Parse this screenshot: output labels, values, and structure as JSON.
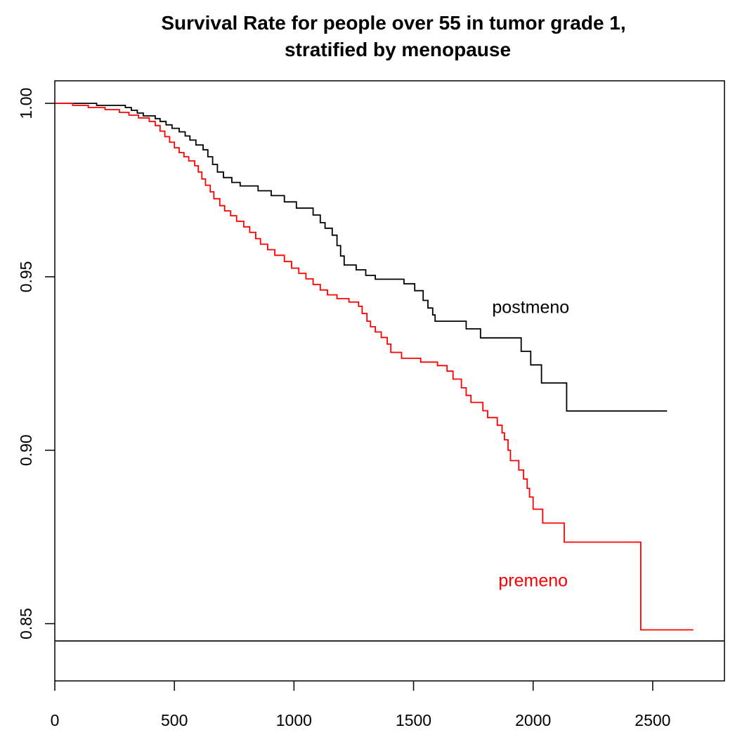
{
  "chart_data": {
    "type": "line",
    "title_lines": [
      "Survival Rate for people over 55 in tumor grade 1,",
      "stratified by menopause"
    ],
    "xlabel": "",
    "ylabel": "",
    "xlim": [
      0,
      2800
    ],
    "ylim": [
      0.8335,
      1.0065
    ],
    "x_ticks": [
      0,
      500,
      1000,
      1500,
      2000,
      2500
    ],
    "x_tick_labels": [
      "0",
      "500",
      "1000",
      "1500",
      "2000",
      "2500"
    ],
    "y_ticks": [
      0.85,
      0.9,
      0.95,
      1.0
    ],
    "y_tick_labels": [
      "0.85",
      "0.90",
      "0.95",
      "1.00"
    ],
    "reference_line": {
      "y": 0.845
    },
    "grid": false,
    "legend": "none",
    "series": [
      {
        "name": "postmeno",
        "color": "#000000",
        "step": true,
        "points": [
          [
            0,
            1.0
          ],
          [
            175,
            0.9994
          ],
          [
            295,
            0.9988
          ],
          [
            320,
            0.998
          ],
          [
            345,
            0.9972
          ],
          [
            370,
            0.9964
          ],
          [
            420,
            0.9956
          ],
          [
            440,
            0.9948
          ],
          [
            465,
            0.9938
          ],
          [
            490,
            0.9928
          ],
          [
            520,
            0.9918
          ],
          [
            545,
            0.9906
          ],
          [
            565,
            0.9894
          ],
          [
            590,
            0.988
          ],
          [
            620,
            0.9866
          ],
          [
            640,
            0.9846
          ],
          [
            660,
            0.9824
          ],
          [
            680,
            0.9802
          ],
          [
            705,
            0.9786
          ],
          [
            740,
            0.9772
          ],
          [
            775,
            0.9762
          ],
          [
            850,
            0.9748
          ],
          [
            905,
            0.9734
          ],
          [
            960,
            0.9716
          ],
          [
            1010,
            0.9698
          ],
          [
            1080,
            0.9678
          ],
          [
            1110,
            0.9656
          ],
          [
            1130,
            0.964
          ],
          [
            1160,
            0.962
          ],
          [
            1180,
            0.959
          ],
          [
            1195,
            0.956
          ],
          [
            1210,
            0.9534
          ],
          [
            1260,
            0.952
          ],
          [
            1300,
            0.9504
          ],
          [
            1340,
            0.9493
          ],
          [
            1460,
            0.948
          ],
          [
            1505,
            0.946
          ],
          [
            1540,
            0.9432
          ],
          [
            1560,
            0.941
          ],
          [
            1580,
            0.939
          ],
          [
            1590,
            0.9372
          ],
          [
            1720,
            0.935
          ],
          [
            1780,
            0.9324
          ],
          [
            1950,
            0.9285
          ],
          [
            1990,
            0.9246
          ],
          [
            2035,
            0.9194
          ],
          [
            2140,
            0.9113
          ],
          [
            2560,
            0.9113
          ]
        ]
      },
      {
        "name": "premeno",
        "color": "#ff0000",
        "step": true,
        "points": [
          [
            0,
            1.0
          ],
          [
            75,
            0.9994
          ],
          [
            140,
            0.9988
          ],
          [
            210,
            0.9982
          ],
          [
            270,
            0.9974
          ],
          [
            310,
            0.9966
          ],
          [
            350,
            0.9958
          ],
          [
            395,
            0.9948
          ],
          [
            420,
            0.9936
          ],
          [
            440,
            0.992
          ],
          [
            460,
            0.9904
          ],
          [
            480,
            0.9888
          ],
          [
            500,
            0.9872
          ],
          [
            520,
            0.9858
          ],
          [
            540,
            0.9846
          ],
          [
            560,
            0.9834
          ],
          [
            585,
            0.982
          ],
          [
            600,
            0.9802
          ],
          [
            615,
            0.9782
          ],
          [
            630,
            0.9764
          ],
          [
            650,
            0.9745
          ],
          [
            665,
            0.9725
          ],
          [
            690,
            0.9705
          ],
          [
            710,
            0.969
          ],
          [
            735,
            0.9676
          ],
          [
            760,
            0.966
          ],
          [
            790,
            0.9644
          ],
          [
            815,
            0.9628
          ],
          [
            840,
            0.961
          ],
          [
            860,
            0.9594
          ],
          [
            890,
            0.9578
          ],
          [
            920,
            0.9562
          ],
          [
            960,
            0.9544
          ],
          [
            990,
            0.9525
          ],
          [
            1020,
            0.951
          ],
          [
            1050,
            0.9494
          ],
          [
            1080,
            0.9478
          ],
          [
            1110,
            0.9462
          ],
          [
            1140,
            0.9448
          ],
          [
            1180,
            0.9437
          ],
          [
            1230,
            0.9427
          ],
          [
            1270,
            0.9415
          ],
          [
            1285,
            0.9394
          ],
          [
            1305,
            0.9372
          ],
          [
            1320,
            0.9356
          ],
          [
            1340,
            0.9341
          ],
          [
            1365,
            0.9325
          ],
          [
            1390,
            0.9306
          ],
          [
            1405,
            0.9282
          ],
          [
            1450,
            0.9265
          ],
          [
            1530,
            0.9254
          ],
          [
            1600,
            0.9244
          ],
          [
            1640,
            0.9228
          ],
          [
            1665,
            0.9205
          ],
          [
            1700,
            0.918
          ],
          [
            1720,
            0.9158
          ],
          [
            1740,
            0.9138
          ],
          [
            1790,
            0.9114
          ],
          [
            1810,
            0.9094
          ],
          [
            1850,
            0.9072
          ],
          [
            1870,
            0.905
          ],
          [
            1880,
            0.903
          ],
          [
            1895,
            0.9
          ],
          [
            1905,
            0.897
          ],
          [
            1940,
            0.8943
          ],
          [
            1960,
            0.8917
          ],
          [
            1975,
            0.889
          ],
          [
            1985,
            0.8865
          ],
          [
            2000,
            0.883
          ],
          [
            2040,
            0.879
          ],
          [
            2130,
            0.8735
          ],
          [
            2450,
            0.8482
          ],
          [
            2670,
            0.8482
          ]
        ]
      }
    ],
    "annotations": [
      {
        "text": "postmeno",
        "x": 1990,
        "y": 0.9395,
        "color": "#000000"
      },
      {
        "text": "premeno",
        "x": 2000,
        "y": 0.8607,
        "color": "#ff0000"
      }
    ]
  }
}
